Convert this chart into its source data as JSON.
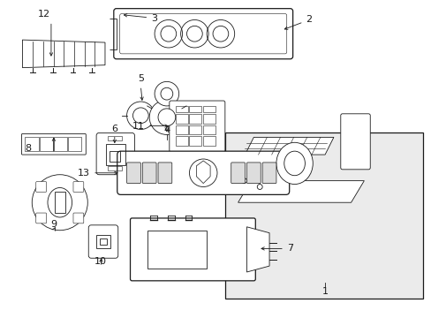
{
  "background_color": "#ffffff",
  "line_color": "#1a1a1a",
  "fig_width": 4.89,
  "fig_height": 3.6,
  "dpi": 100,
  "lw_thin": 0.6,
  "lw_med": 0.9,
  "lw_thick": 1.2,
  "font_size": 7.5,
  "gray_fill": "#e8e8e8"
}
